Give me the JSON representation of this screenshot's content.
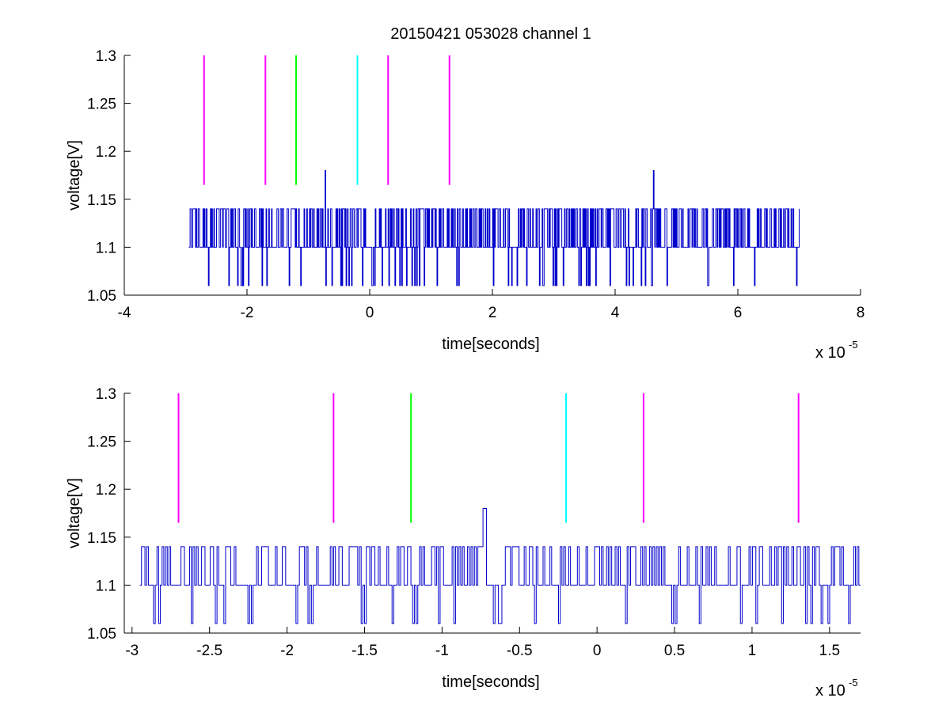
{
  "figure": {
    "title": "20150421 053028 channel 1"
  },
  "chart_data": [
    {
      "type": "line",
      "title": "20150421 053028 channel 1",
      "xlabel": "time[seconds]",
      "ylabel": "voltage[V]",
      "x_multiplier_label": "x 10",
      "x_multiplier_exponent": "-5",
      "xlim": [
        -4,
        8
      ],
      "ylim": [
        1.05,
        1.3
      ],
      "xticks": [
        -4,
        -2,
        0,
        2,
        4,
        6,
        8
      ],
      "xtick_labels": [
        "-4",
        "-2",
        "0",
        "2",
        "4",
        "6",
        "8"
      ],
      "yticks": [
        1.05,
        1.1,
        1.15,
        1.2,
        1.25,
        1.3
      ],
      "ytick_labels": [
        "1.05",
        "1.1",
        "1.15",
        "1.2",
        "1.25",
        "1.3"
      ],
      "grid": false,
      "signal": {
        "color": "#0000cc",
        "x_range": [
          -2.95,
          7.0
        ],
        "levels": [
          1.06,
          1.1,
          1.14
        ],
        "spikes": [
          {
            "x": -0.73,
            "y": 1.18
          },
          {
            "x": 4.62,
            "y": 1.18
          }
        ],
        "samples": 900
      },
      "markers": [
        {
          "x": -2.7,
          "y_range": [
            1.165,
            1.3
          ],
          "color": "#ff00ff"
        },
        {
          "x": -1.7,
          "y_range": [
            1.165,
            1.3
          ],
          "color": "#ff00ff"
        },
        {
          "x": -1.2,
          "y_range": [
            1.165,
            1.3
          ],
          "color": "#00ff00"
        },
        {
          "x": -0.2,
          "y_range": [
            1.165,
            1.3
          ],
          "color": "#00ffff"
        },
        {
          "x": 0.3,
          "y_range": [
            1.165,
            1.3
          ],
          "color": "#ff00ff"
        },
        {
          "x": 1.3,
          "y_range": [
            1.165,
            1.3
          ],
          "color": "#ff00ff"
        }
      ]
    },
    {
      "type": "line",
      "xlabel": "time[seconds]",
      "ylabel": "voltage[V]",
      "x_multiplier_label": "x 10",
      "x_multiplier_exponent": "-5",
      "xlim": [
        -3.05,
        1.7
      ],
      "ylim": [
        1.05,
        1.3
      ],
      "xticks": [
        -3,
        -2.5,
        -2,
        -1.5,
        -1,
        -0.5,
        0,
        0.5,
        1,
        1.5
      ],
      "xtick_labels": [
        "-3",
        "-2.5",
        "-2",
        "-1.5",
        "-1",
        "-0.5",
        "0",
        "0.5",
        "1",
        "1.5"
      ],
      "yticks": [
        1.05,
        1.1,
        1.15,
        1.2,
        1.25,
        1.3
      ],
      "ytick_labels": [
        "1.05",
        "1.1",
        "1.15",
        "1.2",
        "1.25",
        "1.3"
      ],
      "grid": false,
      "signal": {
        "color": "#0000cc",
        "x_range": [
          -2.95,
          1.7
        ],
        "levels": [
          1.06,
          1.1,
          1.14
        ],
        "spikes": [
          {
            "x": -0.73,
            "y": 1.18
          }
        ],
        "samples": 420
      },
      "markers": [
        {
          "x": -2.7,
          "y_range": [
            1.165,
            1.3
          ],
          "color": "#ff00ff"
        },
        {
          "x": -1.7,
          "y_range": [
            1.165,
            1.3
          ],
          "color": "#ff00ff"
        },
        {
          "x": -1.2,
          "y_range": [
            1.165,
            1.3
          ],
          "color": "#00ff00"
        },
        {
          "x": -0.2,
          "y_range": [
            1.165,
            1.3
          ],
          "color": "#00ffff"
        },
        {
          "x": 0.3,
          "y_range": [
            1.165,
            1.3
          ],
          "color": "#ff00ff"
        },
        {
          "x": 1.3,
          "y_range": [
            1.165,
            1.3
          ],
          "color": "#ff00ff"
        }
      ]
    }
  ]
}
